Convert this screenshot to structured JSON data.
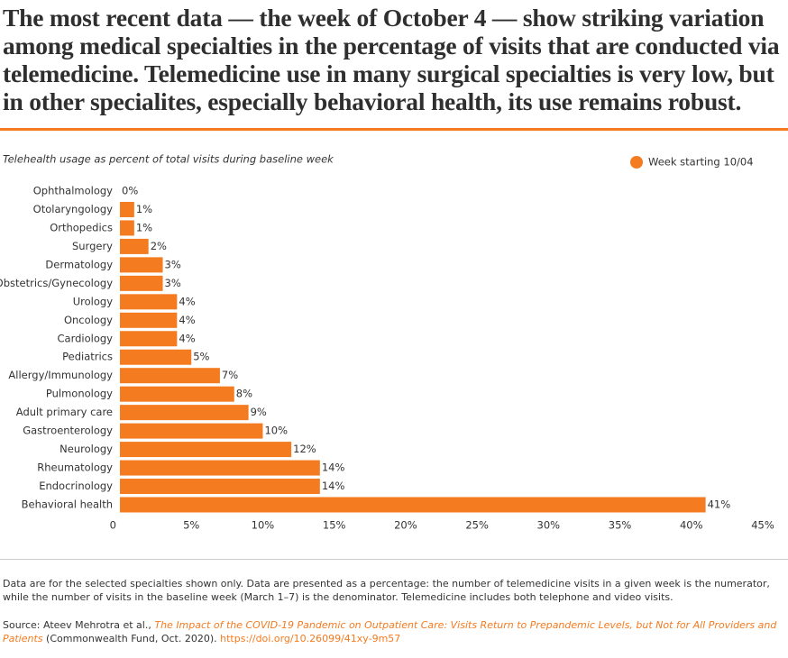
{
  "headline": "The most recent data — the week of October 4 — show striking variation among medical specialties in the percentage of visits that are conducted via telemedicine. Telemedicine use in many surgical specialties is very low, but in other specialites, especially behavioral health, its use remains robust.",
  "chart_data": {
    "type": "hbar",
    "subtitle": "Telehealth usage as percent of total visits during baseline week",
    "categories": [
      "Ophthalmology",
      "Otolaryngology",
      "Orthopedics",
      "Surgery",
      "Dermatology",
      "Obstetrics/Gynecology",
      "Urology",
      "Oncology",
      "Cardiology",
      "Pediatrics",
      "Allergy/Immunology",
      "Pulmonology",
      "Adult primary care",
      "Gastroenterology",
      "Neurology",
      "Rheumatology",
      "Endocrinology",
      "Behavioral health"
    ],
    "series": [
      {
        "name": "Week starting 10/04",
        "color": "#f47b20",
        "values": [
          0,
          1,
          1,
          2,
          3,
          3,
          4,
          4,
          4,
          5,
          7,
          8,
          9,
          10,
          12,
          14,
          14,
          41
        ],
        "value_labels": [
          "0%",
          "1%",
          "1%",
          "2%",
          "3%",
          "3%",
          "4%",
          "4%",
          "4%",
          "5%",
          "7%",
          "8%",
          "9%",
          "10%",
          "12%",
          "14%",
          "14%",
          "41%"
        ]
      }
    ],
    "xlim": [
      0,
      45
    ],
    "xticks": [
      0,
      {
        "value": 5,
        "label": "5%"
      },
      {
        "value": 10,
        "label": "10%"
      },
      {
        "value": 15,
        "label": "15%"
      },
      {
        "value": 20,
        "label": "20%"
      },
      {
        "value": 25,
        "label": "25%"
      },
      {
        "value": 30,
        "label": "30%"
      },
      {
        "value": 35,
        "label": "35%"
      },
      {
        "value": 40,
        "label": "40%"
      },
      {
        "value": 45,
        "label": "45%"
      }
    ],
    "grid": false,
    "legend": "top-right"
  },
  "notes": "Data are for the selected specialties shown only. Data are presented as a percentage: the number of telemedicine visits in a given week is the numerator, while the number of visits in the baseline week (March 1–7) is the denominator. Telemedicine includes both telephone and video visits.",
  "source": {
    "prefix": "Source: Ateev Mehrotra et al., ",
    "title": "The Impact of the COVID-19 Pandemic on Outpatient Care: Visits Return to Prepandemic Levels, but Not for All Providers and Patients",
    "middle": " (Commonwealth Fund, Oct. 2020). ",
    "doi": "https://doi.org/10.26099/41xy-9m57"
  }
}
